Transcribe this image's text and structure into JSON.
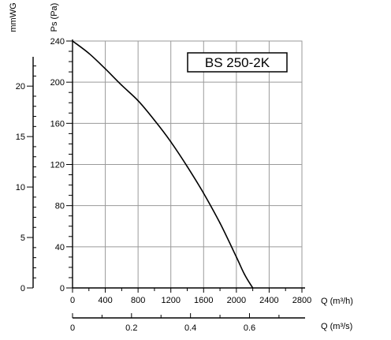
{
  "chart_data": {
    "type": "line",
    "title": "BS 250-2K",
    "legend": "top-right",
    "grid": true,
    "x": [
      0,
      200,
      400,
      600,
      800,
      1000,
      1200,
      1400,
      1600,
      1800,
      2000,
      2100,
      2200
    ],
    "series": [
      {
        "name": "",
        "values": [
          240,
          228,
          213,
          197,
          182,
          163,
          142,
          118,
          92,
          63,
          30,
          13,
          0
        ]
      }
    ],
    "xlabel": "Q (m³/h)",
    "ylabel": "Ps (Pa)",
    "xlim": [
      0,
      2800
    ],
    "ylim": [
      0,
      240
    ],
    "xticks": [
      "0",
      "400",
      "800",
      "1200",
      "1600",
      "2000",
      "2400",
      "2800"
    ],
    "yticks": [
      "0",
      "40",
      "80",
      "120",
      "160",
      "200",
      "240"
    ],
    "secondary_y": {
      "label": "mmWG",
      "ticks": [
        "0",
        "5",
        "10",
        "15",
        "20"
      ],
      "lim": [
        0,
        24.47
      ]
    },
    "secondary_x": {
      "label": "Q (m³/s)",
      "ticks": [
        "0",
        "0.2",
        "0.4",
        "0.6"
      ],
      "lim": [
        0,
        0.7778
      ]
    }
  },
  "colors": {
    "curve": "#000000",
    "grid": "#9a9a9a",
    "axis": "#000000"
  }
}
